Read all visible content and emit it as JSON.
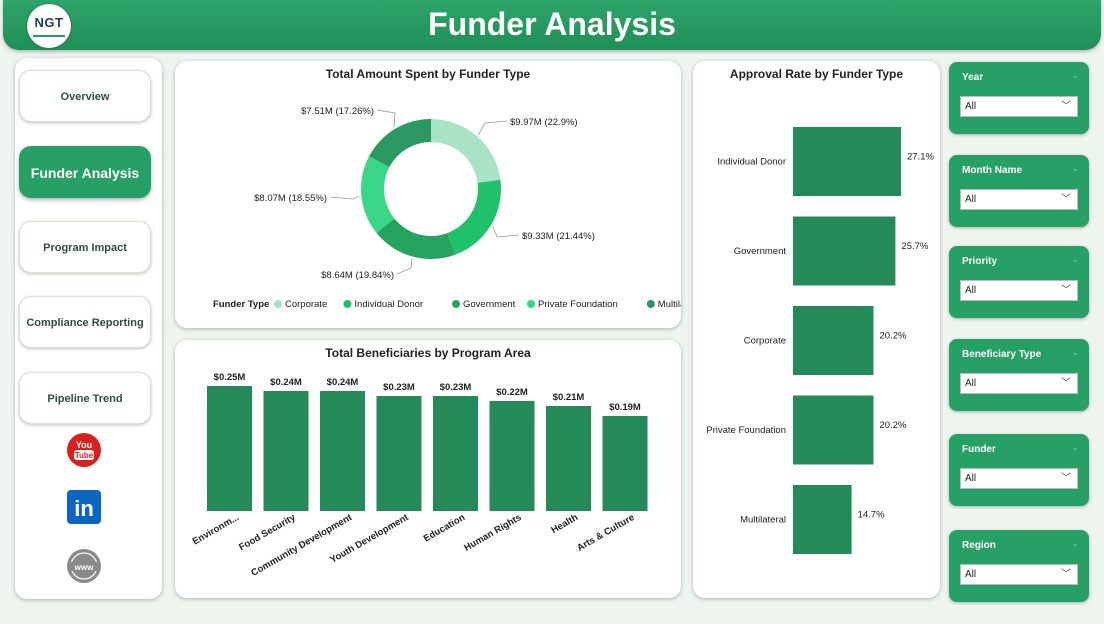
{
  "header": {
    "title": "Funder Analysis",
    "logo_text": "NGT"
  },
  "nav": [
    {
      "label": "Overview",
      "active": false
    },
    {
      "label": "Funder Analysis",
      "active": true
    },
    {
      "label": "Program Impact",
      "active": false
    },
    {
      "label": "Compliance Reporting",
      "active": false
    },
    {
      "label": "Pipeline Trend",
      "active": false
    }
  ],
  "social": {
    "youtube_label": "You Tube",
    "linkedin_label": "in",
    "web_label": "www"
  },
  "donut": {
    "title": "Total Amount Spent by Funder Type",
    "legend_title": "Funder Type",
    "slices": [
      {
        "name": "Corporate",
        "label": "$9.97M (22.9%)",
        "pct": 22.9,
        "color": "#a9e2c4"
      },
      {
        "name": "Individual Donor",
        "label": "$9.33M (21.44%)",
        "pct": 21.44,
        "color": "#1fc26a"
      },
      {
        "name": "Government",
        "label": "$8.64M (19.84%)",
        "pct": 19.84,
        "color": "#26a35c"
      },
      {
        "name": "Private Foundation",
        "label": "$8.07M (18.55%)",
        "pct": 18.55,
        "color": "#39d688"
      },
      {
        "name": "Multilateral",
        "label": "$7.51M (17.26%)",
        "pct": 17.26,
        "color": "#2b9862"
      }
    ]
  },
  "beneficiaries": {
    "title": "Total Beneficiaries by Program Area",
    "categories": [
      "Environm...",
      "Food Security",
      "Community Development",
      "Youth Development",
      "Education",
      "Human Rights",
      "Health",
      "Arts & Culture"
    ],
    "values": [
      0.25,
      0.24,
      0.24,
      0.23,
      0.23,
      0.22,
      0.21,
      0.19
    ],
    "labels": [
      "$0.25M",
      "$0.24M",
      "$0.24M",
      "$0.23M",
      "$0.23M",
      "$0.22M",
      "$0.21M",
      "$0.19M"
    ],
    "color": "#238a58"
  },
  "approval": {
    "title": "Approval Rate by Funder Type",
    "categories": [
      "Individual Donor",
      "Government",
      "Corporate",
      "Private Foundation",
      "Multilateral"
    ],
    "values": [
      27.1,
      25.7,
      20.2,
      20.2,
      14.7
    ],
    "labels": [
      "27.1%",
      "25.7%",
      "20.2%",
      "20.2%",
      "14.7%"
    ],
    "color": "#238a58"
  },
  "chart_data": [
    {
      "type": "pie",
      "title": "Total Amount Spent by Funder Type",
      "categories": [
        "Corporate",
        "Individual Donor",
        "Government",
        "Private Foundation",
        "Multilateral"
      ],
      "values": [
        9.97,
        9.33,
        8.64,
        8.07,
        7.51
      ],
      "percent": [
        22.9,
        21.44,
        19.84,
        18.55,
        17.26
      ],
      "legend": "bottom"
    },
    {
      "type": "bar",
      "title": "Total Beneficiaries by Program Area",
      "categories": [
        "Environm...",
        "Food Security",
        "Community Development",
        "Youth Development",
        "Education",
        "Human Rights",
        "Health",
        "Arts & Culture"
      ],
      "values": [
        0.25,
        0.24,
        0.24,
        0.23,
        0.23,
        0.22,
        0.21,
        0.19
      ]
    },
    {
      "type": "bar",
      "title": "Approval Rate by Funder Type",
      "categories": [
        "Individual Donor",
        "Government",
        "Corporate",
        "Private Foundation",
        "Multilateral"
      ],
      "values": [
        27.1,
        25.7,
        20.2,
        20.2,
        14.7
      ]
    }
  ],
  "slicers": [
    {
      "label": "Year",
      "value": "All"
    },
    {
      "label": "Month Name",
      "value": "All"
    },
    {
      "label": "Priority",
      "value": "All"
    },
    {
      "label": "Beneficiary Type",
      "value": "All"
    },
    {
      "label": "Funder",
      "value": "All"
    },
    {
      "label": "Region",
      "value": "All"
    }
  ]
}
